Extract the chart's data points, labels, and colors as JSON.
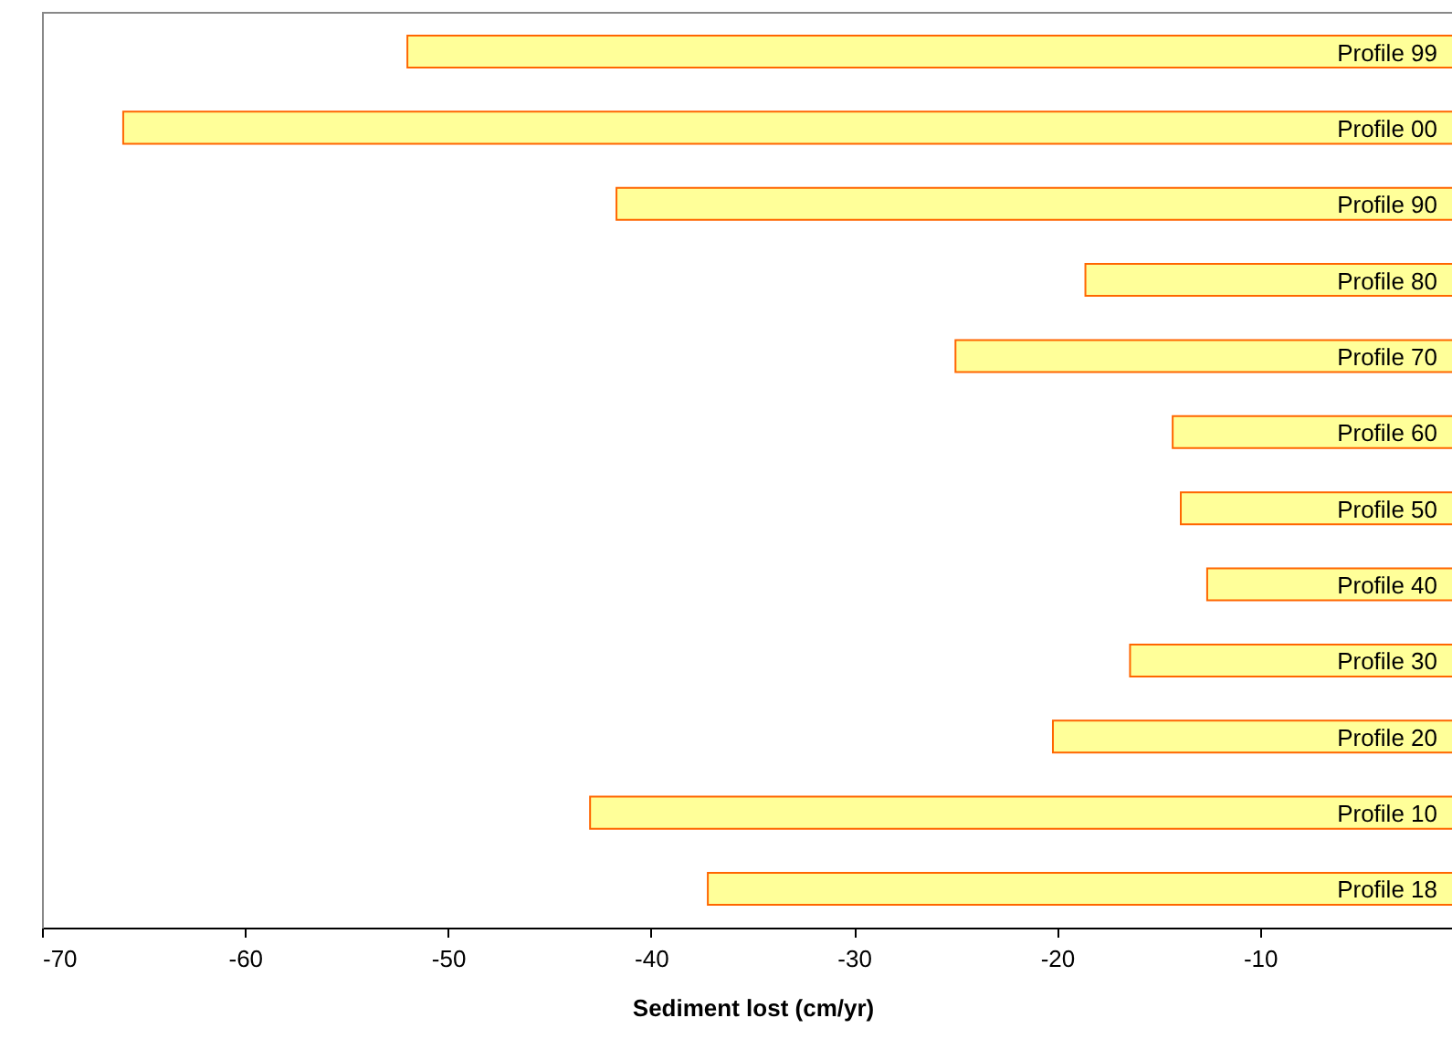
{
  "chart_data": {
    "type": "bar",
    "orientation": "horizontal",
    "xlabel": "Sediment lost (cm/yr)",
    "categories": [
      "Profile 99",
      "Profile 00",
      "Profile 90",
      "Profile 80",
      "Profile 70",
      "Profile 60",
      "Profile 50",
      "Profile 40",
      "Profile 30",
      "Profile 20",
      "Profile 10",
      "Profile 18"
    ],
    "values": [
      -52.0,
      -66.0,
      -41.7,
      -18.6,
      -25.0,
      -14.3,
      -13.9,
      -12.6,
      -16.4,
      -20.2,
      -43.0,
      -37.2
    ],
    "color": "#ffff99",
    "xlim": [
      -70,
      0
    ],
    "xticks": [
      -70,
      -60,
      -50,
      -40,
      -30,
      -20,
      -10
    ],
    "grid": false
  }
}
